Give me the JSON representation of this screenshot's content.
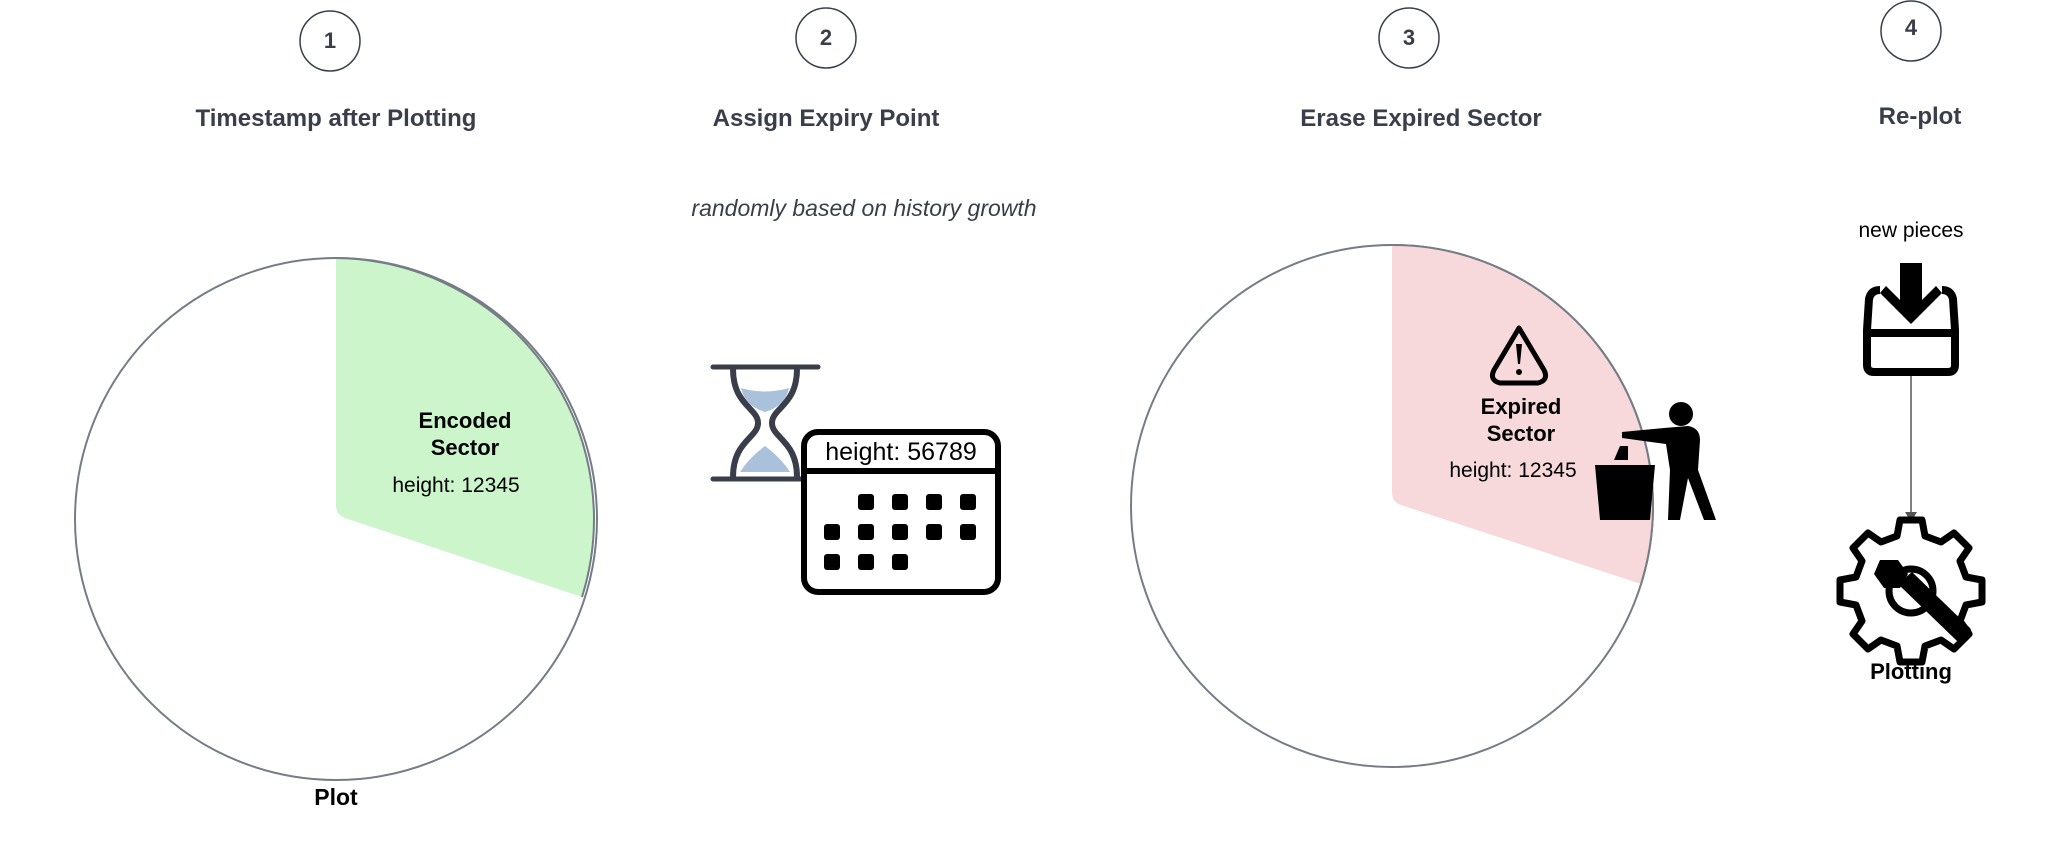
{
  "steps": [
    {
      "number": "1",
      "title": "Timestamp after Plotting",
      "sector_label": [
        "Encoded",
        "Sector"
      ],
      "height_text": "height: 12345",
      "plot_label": "Plot"
    },
    {
      "number": "2",
      "title": "Assign Expiry Point",
      "subtitle": "randomly based on history growth",
      "height_text": "height: 56789"
    },
    {
      "number": "3",
      "title": "Erase Expired Sector",
      "sector_label": [
        "Expired",
        "Sector"
      ],
      "height_text": "height: 12345"
    },
    {
      "number": "4",
      "title": "Re-plot",
      "input_label": "new pieces",
      "process_label": "Plotting"
    }
  ],
  "icons": {
    "step2": [
      "hourglass-icon",
      "calendar-icon"
    ],
    "step3": [
      "warning-icon",
      "trash-person-icon"
    ],
    "step4": [
      "inbox-download-icon",
      "gear-wrench-icon"
    ]
  },
  "colors": {
    "encoded_sector_fill": "#ccf5cc",
    "expired_sector_fill": "#f7d9db",
    "circle_stroke": "#767c86",
    "title_text": "#3a3e4a",
    "hourglass_sand": "#a9c1da"
  }
}
